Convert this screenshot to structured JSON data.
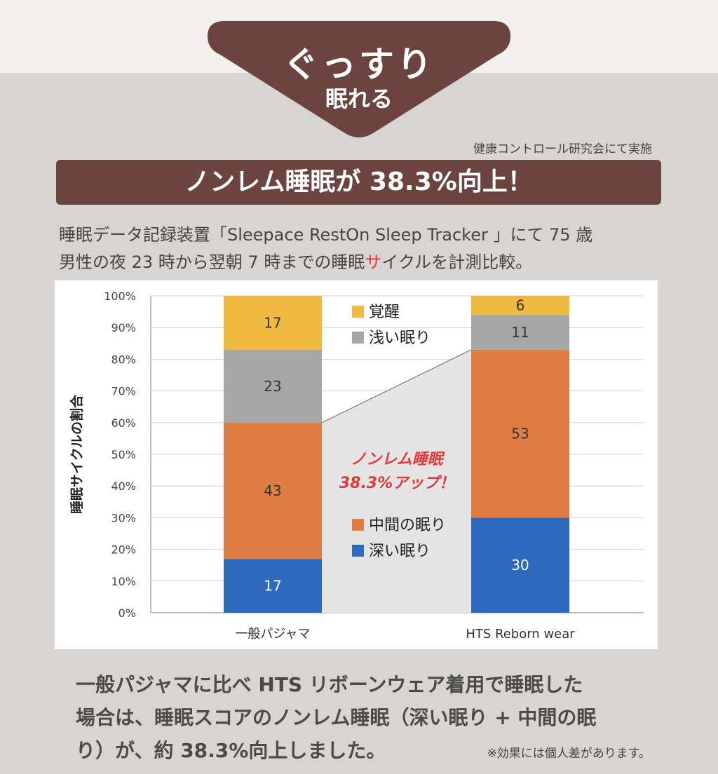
{
  "headline": {
    "main": "ぐっすり",
    "sub": "眠れる"
  },
  "source_note": "健康コントロール研究会にて実施",
  "result_banner": "ノンレム睡眠が 38.3%向上！",
  "description": {
    "line1": "睡眠データ記録装置「Sleepace RestOn Sleep Tracker 」にて 75 歳",
    "line2_before": "男性の夜 23 時から翌朝 7 時までの睡眠",
    "line2_highlight": "サ",
    "line2_after": "イクルを計測比較。"
  },
  "colors": {
    "brand": "#6b4440",
    "deep": "#2e6bbf",
    "medium": "#e07d45",
    "light": "#a6a6a6",
    "awake": "#f0b940",
    "callout": "#e03a3a"
  },
  "chart_data": {
    "type": "bar",
    "stacked": true,
    "ylabel": "睡眠サイクルの割合",
    "ylim": [
      0,
      100
    ],
    "yticks": [
      "0%",
      "10%",
      "20%",
      "30%",
      "40%",
      "50%",
      "60%",
      "70%",
      "80%",
      "90%",
      "100%"
    ],
    "categories": [
      "一般パジャマ",
      "HTS Reborn wear"
    ],
    "series": [
      {
        "name": "深い眠り",
        "values": [
          17,
          30
        ]
      },
      {
        "name": "中間の眠り",
        "values": [
          43,
          53
        ]
      },
      {
        "name": "浅い眠り",
        "values": [
          23,
          11
        ]
      },
      {
        "name": "覚醒",
        "values": [
          17,
          6
        ]
      }
    ],
    "legend_top": [
      "覚醒",
      "浅い眠り"
    ],
    "legend_bottom": [
      "中間の眠り",
      "深い眠り"
    ],
    "annotation": [
      "ノンレム睡眠",
      "38.3%アップ！"
    ],
    "grid": true
  },
  "bottom_text": {
    "line1": "一般パジャマに比べ HTS リボーンウェア着用で睡眠した",
    "line2": "場合は、睡眠スコアのノンレム睡眠（深い眠り + 中間の眠",
    "line3": "り）が、約 38.3%向上しました。"
  },
  "disclaimer": "※効果には個人差があります。"
}
